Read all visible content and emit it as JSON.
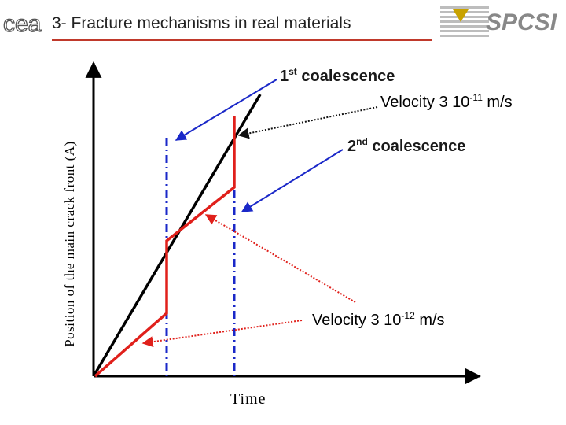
{
  "header": {
    "title": "3- Fracture mechanisms in real materials",
    "logo_left_text": "cea",
    "logo_right_text": "SPCSI"
  },
  "axes": {
    "y_label": "Position of the main crack front (A)",
    "x_label": "Time"
  },
  "annotations": {
    "first_coalescence": {
      "prefix": "1",
      "sup": "st",
      "suffix": " coalescence"
    },
    "second_coalescence": {
      "prefix": "2",
      "sup": "nd",
      "suffix": " coalescence"
    },
    "velocity_high": {
      "prefix": "Velocity 3 10",
      "sup": "-11",
      "suffix": " m/s"
    },
    "velocity_low": {
      "prefix": "Velocity 3 10",
      "sup": "-12",
      "suffix": " m/s"
    }
  },
  "colors": {
    "accent_red": "#e0201b",
    "arrow_blue": "#1a28c8",
    "dashdot_blue": "#1a28c8",
    "title_rule": "#c0392b"
  }
}
